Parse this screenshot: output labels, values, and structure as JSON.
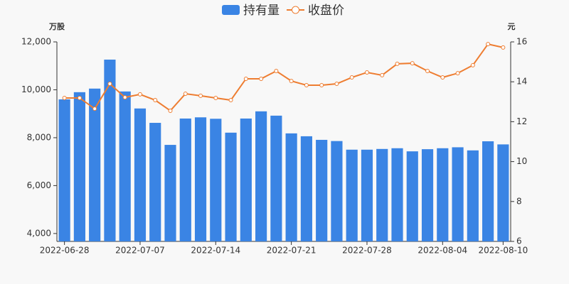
{
  "chart_data": {
    "type": "bar_line",
    "y_label": "万股",
    "y2_label": "元",
    "categories": [
      "2022-06-28",
      null,
      null,
      null,
      null,
      "2022-07-07",
      null,
      null,
      null,
      null,
      "2022-07-14",
      null,
      null,
      null,
      null,
      "2022-07-21",
      null,
      null,
      null,
      null,
      "2022-07-28",
      null,
      null,
      null,
      null,
      "2022-08-04",
      null,
      null,
      null,
      "2022-08-10"
    ],
    "series": [
      {
        "name": "持有量",
        "color": "#3a84e4",
        "kind": "bar",
        "values": [
          9600,
          9900,
          10050,
          11260,
          9930,
          9220,
          8620,
          7700,
          8800,
          8850,
          8790,
          8210,
          8800,
          9100,
          8920,
          8180,
          8060,
          7910,
          7860,
          7500,
          7500,
          7530,
          7560,
          7430,
          7520,
          7560,
          7600,
          7470,
          7850,
          7720
        ]
      },
      {
        "name": "收盘价",
        "color": "#ee7d31",
        "kind": "line",
        "axis": "y2",
        "values": [
          13.19,
          13.19,
          12.65,
          13.9,
          13.22,
          13.37,
          13.08,
          12.55,
          13.4,
          13.3,
          13.19,
          13.08,
          14.15,
          14.15,
          14.54,
          14.04,
          13.83,
          13.83,
          13.9,
          14.22,
          14.47,
          14.33,
          14.9,
          14.93,
          14.54,
          14.22,
          14.43,
          14.83,
          15.89,
          15.72
        ]
      }
    ],
    "ylim": [
      3670,
      12000
    ],
    "yticks": [
      {
        "value": 4000,
        "label": "4,000"
      },
      {
        "value": 6000,
        "label": "6,000"
      },
      {
        "value": 8000,
        "label": "8,000"
      },
      {
        "value": 10000,
        "label": "10,000"
      },
      {
        "value": 12000,
        "label": "12,000"
      }
    ],
    "y2lim": [
      6,
      16
    ],
    "y2ticks": [
      6,
      8,
      10,
      12,
      14,
      16
    ],
    "legend": "top"
  }
}
